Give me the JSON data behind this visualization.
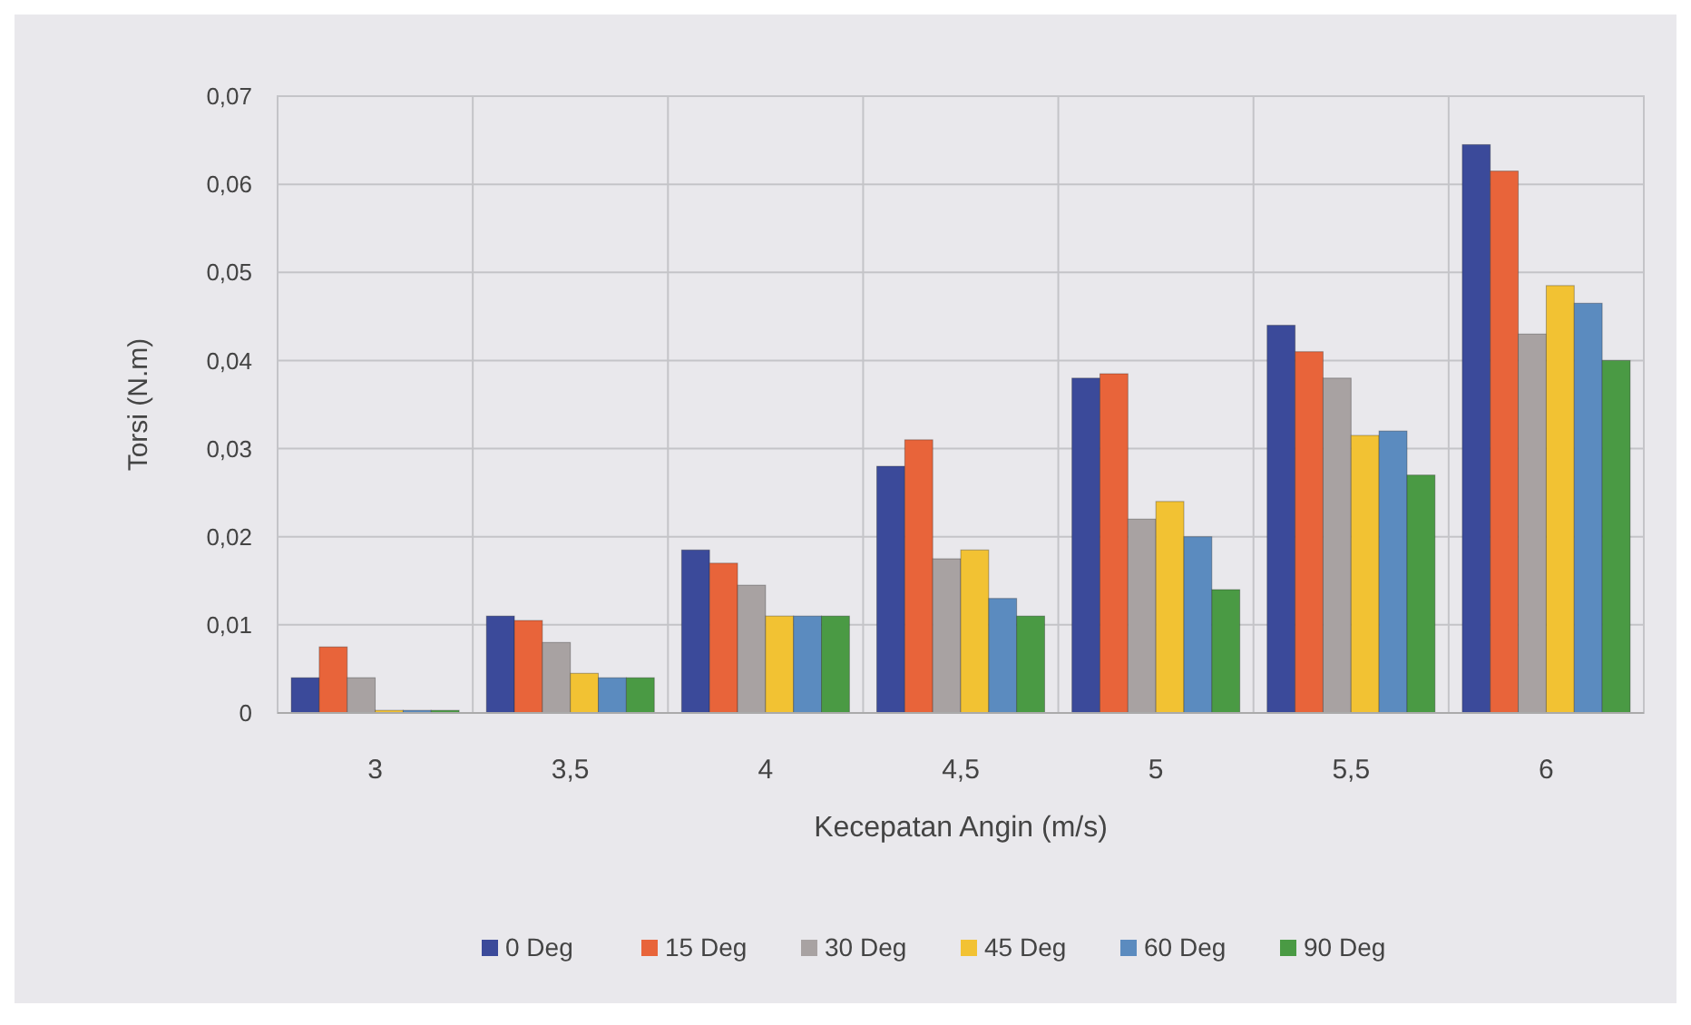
{
  "chart_data": {
    "type": "bar",
    "xlabel": "Kecepatan Angin (m/s)",
    "ylabel": "Torsi (N.m)",
    "categories": [
      "3",
      "3,5",
      "4",
      "4,5",
      "5",
      "5,5",
      "6"
    ],
    "series": [
      {
        "name": "0 Deg",
        "color": "#3b4a9a",
        "values": [
          0.004,
          0.011,
          0.0185,
          0.028,
          0.038,
          0.044,
          0.0645
        ]
      },
      {
        "name": "15 Deg",
        "color": "#e8643a",
        "values": [
          0.0075,
          0.0105,
          0.017,
          0.031,
          0.0385,
          0.041,
          0.0615
        ]
      },
      {
        "name": "30 Deg",
        "color": "#a8a2a2",
        "values": [
          0.004,
          0.008,
          0.0145,
          0.0175,
          0.022,
          0.038,
          0.043
        ]
      },
      {
        "name": "45 Deg",
        "color": "#f2c233",
        "values": [
          0.0003,
          0.0045,
          0.011,
          0.0185,
          0.024,
          0.0315,
          0.0485
        ]
      },
      {
        "name": "60 Deg",
        "color": "#5b8bbf",
        "values": [
          0.0003,
          0.004,
          0.011,
          0.013,
          0.02,
          0.032,
          0.0465
        ]
      },
      {
        "name": "90 Deg",
        "color": "#4a9a44",
        "values": [
          0.0003,
          0.004,
          0.011,
          0.011,
          0.014,
          0.027,
          0.04
        ]
      }
    ],
    "ylim": [
      0,
      0.07
    ],
    "yticks": [
      0,
      {
        "value": 0.01,
        "label": "0,01"
      },
      {
        "value": 0.02,
        "label": "0,02"
      },
      {
        "value": 0.03,
        "label": "0,03"
      },
      {
        "value": 0.04,
        "label": "0,04"
      },
      {
        "value": 0.05,
        "label": "0,05"
      },
      {
        "value": 0.06,
        "label": "0,06"
      },
      {
        "value": 0.07,
        "label": "0,07"
      }
    ],
    "grid": true,
    "legend": "bottom"
  }
}
